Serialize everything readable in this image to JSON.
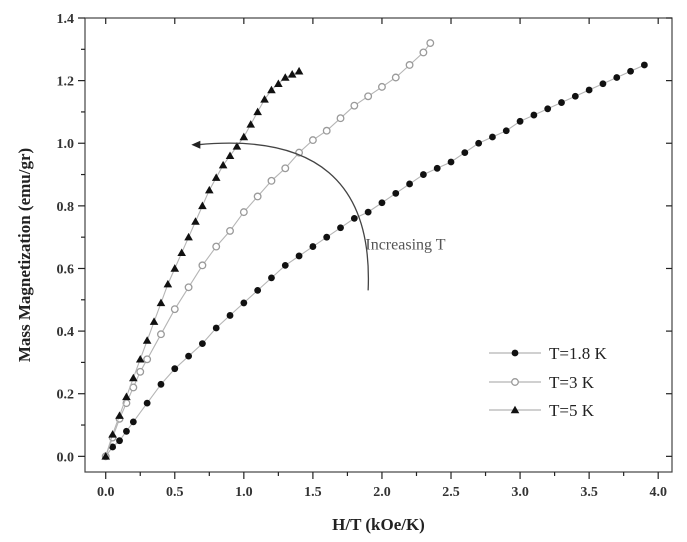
{
  "chart_data": {
    "type": "scatter",
    "xlabel": "H/T (kOe/K)",
    "ylabel": "Mass Magnetization (emu/gr)",
    "xlim": [
      -0.15,
      4.1
    ],
    "ylim": [
      -0.05,
      1.4
    ],
    "xticks": [
      0.0,
      0.5,
      1.0,
      1.5,
      2.0,
      2.5,
      3.0,
      3.5,
      4.0
    ],
    "xtick_labels": [
      "0.0",
      "0.5",
      "1.0",
      "1.5",
      "2.0",
      "2.5",
      "3.0",
      "3.5",
      "4.0"
    ],
    "yticks": [
      0.0,
      0.2,
      0.4,
      0.6,
      0.8,
      1.0,
      1.2,
      1.4
    ],
    "ytick_labels": [
      "0.0",
      "0.2",
      "0.4",
      "0.6",
      "0.8",
      "1.0",
      "1.2",
      "1.4"
    ],
    "grid": false,
    "legend_position": "bottom-right",
    "series": [
      {
        "name": "T=1.8 K",
        "marker": "filled-circle",
        "color": "#111111",
        "x": [
          0.0,
          0.05,
          0.1,
          0.15,
          0.2,
          0.3,
          0.4,
          0.5,
          0.6,
          0.7,
          0.8,
          0.9,
          1.0,
          1.1,
          1.2,
          1.3,
          1.4,
          1.5,
          1.6,
          1.7,
          1.8,
          1.9,
          2.0,
          2.1,
          2.2,
          2.3,
          2.4,
          2.5,
          2.6,
          2.7,
          2.8,
          2.9,
          3.0,
          3.1,
          3.2,
          3.3,
          3.4,
          3.5,
          3.6,
          3.7,
          3.8,
          3.9
        ],
        "y": [
          0.0,
          0.03,
          0.05,
          0.08,
          0.11,
          0.17,
          0.23,
          0.28,
          0.32,
          0.36,
          0.41,
          0.45,
          0.49,
          0.53,
          0.57,
          0.61,
          0.64,
          0.67,
          0.7,
          0.73,
          0.76,
          0.78,
          0.81,
          0.84,
          0.87,
          0.9,
          0.92,
          0.94,
          0.97,
          1.0,
          1.02,
          1.04,
          1.07,
          1.09,
          1.11,
          1.13,
          1.15,
          1.17,
          1.19,
          1.21,
          1.23,
          1.25
        ]
      },
      {
        "name": "T=3 K",
        "marker": "open-circle",
        "color": "#9a9a9a",
        "x": [
          0.0,
          0.05,
          0.1,
          0.15,
          0.2,
          0.25,
          0.3,
          0.4,
          0.5,
          0.6,
          0.7,
          0.8,
          0.9,
          1.0,
          1.1,
          1.2,
          1.3,
          1.4,
          1.5,
          1.6,
          1.7,
          1.8,
          1.9,
          2.0,
          2.1,
          2.2,
          2.3,
          2.35
        ],
        "y": [
          0.0,
          0.06,
          0.12,
          0.17,
          0.22,
          0.27,
          0.31,
          0.39,
          0.47,
          0.54,
          0.61,
          0.67,
          0.72,
          0.78,
          0.83,
          0.88,
          0.92,
          0.97,
          1.01,
          1.04,
          1.08,
          1.12,
          1.15,
          1.18,
          1.21,
          1.25,
          1.29,
          1.32
        ]
      },
      {
        "name": "T=5 K",
        "marker": "filled-triangle",
        "color": "#111111",
        "x": [
          0.0,
          0.05,
          0.1,
          0.15,
          0.2,
          0.25,
          0.3,
          0.35,
          0.4,
          0.45,
          0.5,
          0.55,
          0.6,
          0.65,
          0.7,
          0.75,
          0.8,
          0.85,
          0.9,
          0.95,
          1.0,
          1.05,
          1.1,
          1.15,
          1.2,
          1.25,
          1.3,
          1.35,
          1.4
        ],
        "y": [
          0.0,
          0.07,
          0.13,
          0.19,
          0.25,
          0.31,
          0.37,
          0.43,
          0.49,
          0.55,
          0.6,
          0.65,
          0.7,
          0.75,
          0.8,
          0.85,
          0.89,
          0.93,
          0.96,
          0.99,
          1.02,
          1.06,
          1.1,
          1.14,
          1.17,
          1.19,
          1.21,
          1.22,
          1.23
        ]
      }
    ],
    "annotations": [
      {
        "text": "Increasing T"
      }
    ]
  }
}
